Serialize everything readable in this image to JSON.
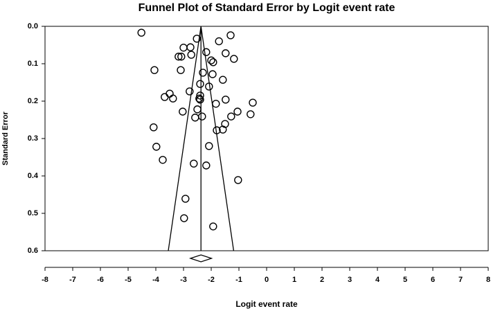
{
  "chart_data": {
    "type": "funnel",
    "title": "Funnel Plot of Standard Error by Logit event rate",
    "x_label": "Logit event rate",
    "y_label": "Standard Error",
    "xlim": [
      -8,
      8
    ],
    "xticks": [
      -8,
      -7,
      -6,
      -5,
      -4,
      -3,
      -2,
      -1,
      0,
      1,
      2,
      3,
      4,
      5,
      6,
      7,
      8
    ],
    "ylim": [
      0,
      0.6
    ],
    "y_reversed": true,
    "yticks": [
      {
        "value": 0,
        "label": "0.0"
      },
      0.1,
      0.2,
      0.3,
      0.4,
      0.5,
      0.6
    ],
    "funnel": {
      "center": -2.37,
      "lower_at_base": -3.55,
      "upper_at_base": -1.19
    },
    "summary": {
      "estimate": -2.37,
      "lower": -2.75,
      "upper": -1.99
    },
    "x": [
      -4.52,
      -2.52,
      -1.3,
      -1.72,
      -3.0,
      -2.75,
      -2.18,
      -1.48,
      -2.72,
      -3.18,
      -3.08,
      -2.0,
      -1.93,
      -1.18,
      -4.05,
      -3.1,
      -2.3,
      -1.95,
      -1.58,
      -2.4,
      -2.08,
      -2.78,
      -3.5,
      -2.4,
      -3.68,
      -3.38,
      -2.43,
      -2.4,
      -1.48,
      -0.5,
      -1.83,
      -2.5,
      -3.03,
      -1.05,
      -0.58,
      -1.28,
      -2.33,
      -2.58,
      -1.5,
      -1.58,
      -1.8,
      -4.08,
      -2.08,
      -3.98,
      -3.75,
      -2.18,
      -2.63,
      -1.03,
      -2.93,
      -2.98,
      -1.93
    ],
    "values": [
      0.017,
      0.033,
      0.024,
      0.04,
      0.057,
      0.056,
      0.069,
      0.072,
      0.076,
      0.081,
      0.081,
      0.091,
      0.096,
      0.087,
      0.117,
      0.117,
      0.124,
      0.128,
      0.143,
      0.154,
      0.161,
      0.174,
      0.18,
      0.185,
      0.189,
      0.193,
      0.193,
      0.196,
      0.196,
      0.204,
      0.207,
      0.222,
      0.228,
      0.228,
      0.235,
      0.241,
      0.241,
      0.244,
      0.261,
      0.276,
      0.278,
      0.27,
      0.32,
      0.322,
      0.357,
      0.372,
      0.367,
      0.411,
      0.461,
      0.513,
      0.535
    ]
  }
}
